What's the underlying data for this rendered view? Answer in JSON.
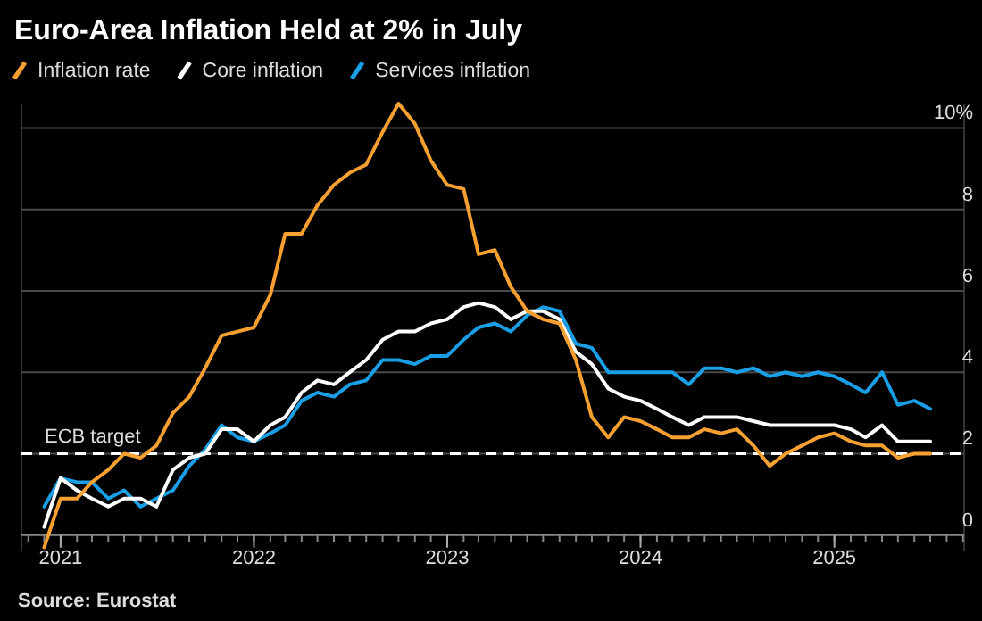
{
  "chart_data": {
    "type": "line",
    "title": "Euro-Area Inflation Held at 2% in July",
    "x": [
      "2020-12",
      "2021-01",
      "2021-02",
      "2021-03",
      "2021-04",
      "2021-05",
      "2021-06",
      "2021-07",
      "2021-08",
      "2021-09",
      "2021-10",
      "2021-11",
      "2021-12",
      "2022-01",
      "2022-02",
      "2022-03",
      "2022-04",
      "2022-05",
      "2022-06",
      "2022-07",
      "2022-08",
      "2022-09",
      "2022-10",
      "2022-11",
      "2022-12",
      "2023-01",
      "2023-02",
      "2023-03",
      "2023-04",
      "2023-05",
      "2023-06",
      "2023-07",
      "2023-08",
      "2023-09",
      "2023-10",
      "2023-11",
      "2023-12",
      "2024-01",
      "2024-02",
      "2024-03",
      "2024-04",
      "2024-05",
      "2024-06",
      "2024-07",
      "2024-08",
      "2024-09",
      "2024-10",
      "2024-11",
      "2024-12",
      "2025-01",
      "2025-02",
      "2025-03",
      "2025-04",
      "2025-05",
      "2025-06",
      "2025-07"
    ],
    "series": [
      {
        "name": "Inflation rate",
        "color": "#f7a032",
        "values": [
          -0.3,
          0.9,
          0.9,
          1.3,
          1.6,
          2.0,
          1.9,
          2.2,
          3.0,
          3.4,
          4.1,
          4.9,
          5.0,
          5.1,
          5.9,
          7.4,
          7.4,
          8.1,
          8.6,
          8.9,
          9.1,
          9.9,
          10.6,
          10.1,
          9.2,
          8.6,
          8.5,
          6.9,
          7.0,
          6.1,
          5.5,
          5.3,
          5.2,
          4.3,
          2.9,
          2.4,
          2.9,
          2.8,
          2.6,
          2.4,
          2.4,
          2.6,
          2.5,
          2.6,
          2.2,
          1.7,
          2.0,
          2.2,
          2.4,
          2.5,
          2.3,
          2.2,
          2.2,
          1.9,
          2.0,
          2.0
        ]
      },
      {
        "name": "Core inflation",
        "color": "#ffffff",
        "values": [
          0.2,
          1.4,
          1.1,
          0.9,
          0.7,
          0.9,
          0.9,
          0.7,
          1.6,
          1.9,
          2.0,
          2.6,
          2.6,
          2.3,
          2.7,
          2.9,
          3.5,
          3.8,
          3.7,
          4.0,
          4.3,
          4.8,
          5.0,
          5.0,
          5.2,
          5.3,
          5.6,
          5.7,
          5.6,
          5.3,
          5.5,
          5.5,
          5.3,
          4.5,
          4.2,
          3.6,
          3.4,
          3.3,
          3.1,
          2.9,
          2.7,
          2.9,
          2.9,
          2.9,
          2.8,
          2.7,
          2.7,
          2.7,
          2.7,
          2.7,
          2.6,
          2.4,
          2.7,
          2.3,
          2.3,
          2.3
        ]
      },
      {
        "name": "Services inflation",
        "color": "#1a9fe6",
        "values": [
          0.7,
          1.4,
          1.3,
          1.3,
          0.9,
          1.1,
          0.7,
          0.9,
          1.1,
          1.7,
          2.1,
          2.7,
          2.4,
          2.3,
          2.5,
          2.7,
          3.3,
          3.5,
          3.4,
          3.7,
          3.8,
          4.3,
          4.3,
          4.2,
          4.4,
          4.4,
          4.8,
          5.1,
          5.2,
          5.0,
          5.4,
          5.6,
          5.5,
          4.7,
          4.6,
          4.0,
          4.0,
          4.0,
          4.0,
          4.0,
          3.7,
          4.1,
          4.1,
          4.0,
          4.1,
          3.9,
          4.0,
          3.9,
          4.0,
          3.9,
          3.7,
          3.5,
          4.0,
          3.2,
          3.3,
          3.1
        ]
      }
    ],
    "xlim": [
      "2020-10-19",
      "2025-09-03"
    ],
    "xticks": [
      {
        "value": "2021-01",
        "label": "2021"
      },
      {
        "value": "2022-01",
        "label": "2022"
      },
      {
        "value": "2023-01",
        "label": "2023"
      },
      {
        "value": "2024-01",
        "label": "2024"
      },
      {
        "value": "2025-01",
        "label": "2025"
      }
    ],
    "ylim": [
      -0.4,
      10.6
    ],
    "yticks": [
      0,
      2,
      4,
      6,
      8,
      {
        "value": 10,
        "label": "10%"
      }
    ],
    "grid": "y",
    "legend": "top left",
    "ref_lines": [
      {
        "axis": "y",
        "value": 2,
        "label": "ECB target",
        "color": "#ffffff",
        "line_style": "dashed"
      }
    ],
    "annotations": [
      "Source: Eurostat"
    ]
  }
}
